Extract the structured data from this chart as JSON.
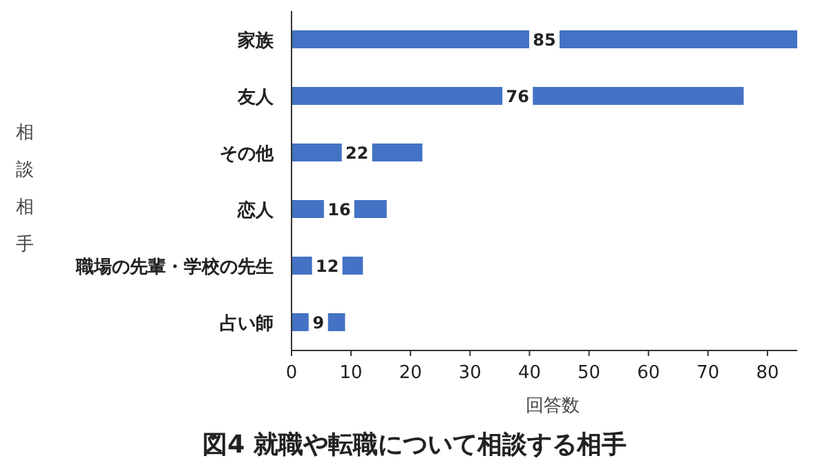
{
  "chart_data": {
    "type": "bar",
    "orientation": "horizontal",
    "title": "図4 就職や転職について相談する相手",
    "xlabel": "回答数",
    "ylabel": "相談相手",
    "categories": [
      "家族",
      "友人",
      "その他",
      "恋人",
      "職場の先輩・学校の先生",
      "占い師"
    ],
    "values": [
      85,
      76,
      22,
      16,
      12,
      9
    ],
    "color": "#4472c4",
    "xlim": [
      0,
      85
    ],
    "xticks": [
      0,
      10,
      20,
      30,
      40,
      50,
      60,
      70,
      80
    ],
    "data_labels": true
  }
}
